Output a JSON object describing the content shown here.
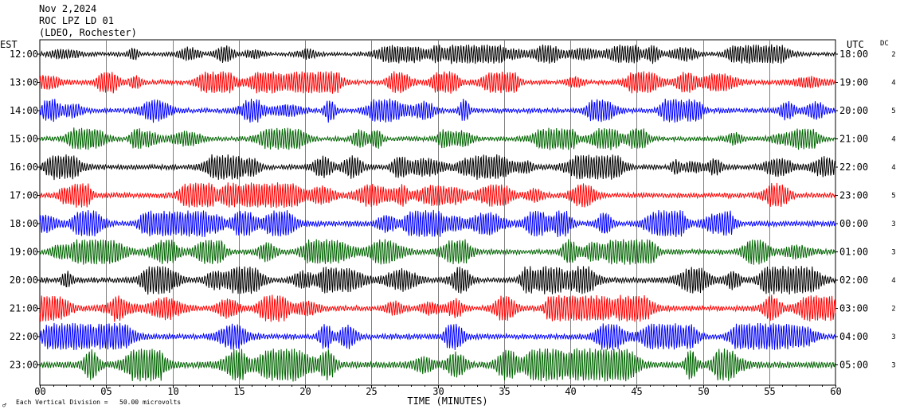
{
  "header": {
    "date": "Nov 2,2024",
    "station": "ROC LPZ LD 01",
    "location": "(LDEO, Rochester)"
  },
  "left_zone": "EST",
  "right_zone": "UTC",
  "dc_label": "DC",
  "footer": {
    "note_mark": "♂",
    "division_note": "Each Vertical Division =   50.00 microvolts"
  },
  "chart_data": {
    "type": "line",
    "title": "",
    "xlabel": "TIME (MINUTES)",
    "xlim": [
      0,
      60
    ],
    "x_ticks": [
      "00",
      "05",
      "10",
      "15",
      "20",
      "25",
      "30",
      "35",
      "40",
      "45",
      "50",
      "55",
      "60"
    ],
    "grid": true,
    "series": [
      {
        "local": "12:00",
        "utc": "18:00",
        "dc": "2",
        "color": "#000000",
        "amplitude": 0.35
      },
      {
        "local": "13:00",
        "utc": "19:00",
        "dc": "4",
        "color": "#ff0000",
        "amplitude": 0.45
      },
      {
        "local": "14:00",
        "utc": "20:00",
        "dc": "5",
        "color": "#0000ff",
        "amplitude": 0.5
      },
      {
        "local": "15:00",
        "utc": "21:00",
        "dc": "4",
        "color": "#006400",
        "amplitude": 0.45
      },
      {
        "local": "16:00",
        "utc": "22:00",
        "dc": "4",
        "color": "#000000",
        "amplitude": 0.55
      },
      {
        "local": "17:00",
        "utc": "23:00",
        "dc": "5",
        "color": "#ff0000",
        "amplitude": 0.55
      },
      {
        "local": "18:00",
        "utc": "00:00",
        "dc": "3",
        "color": "#0000ff",
        "amplitude": 0.6
      },
      {
        "local": "19:00",
        "utc": "01:00",
        "dc": "3",
        "color": "#006400",
        "amplitude": 0.55
      },
      {
        "local": "20:00",
        "utc": "02:00",
        "dc": "4",
        "color": "#000000",
        "amplitude": 0.65
      },
      {
        "local": "21:00",
        "utc": "03:00",
        "dc": "2",
        "color": "#ff0000",
        "amplitude": 0.6
      },
      {
        "local": "22:00",
        "utc": "04:00",
        "dc": "3",
        "color": "#0000ff",
        "amplitude": 0.6
      },
      {
        "local": "23:00",
        "utc": "05:00",
        "dc": "3",
        "color": "#006400",
        "amplitude": 0.8
      }
    ]
  }
}
